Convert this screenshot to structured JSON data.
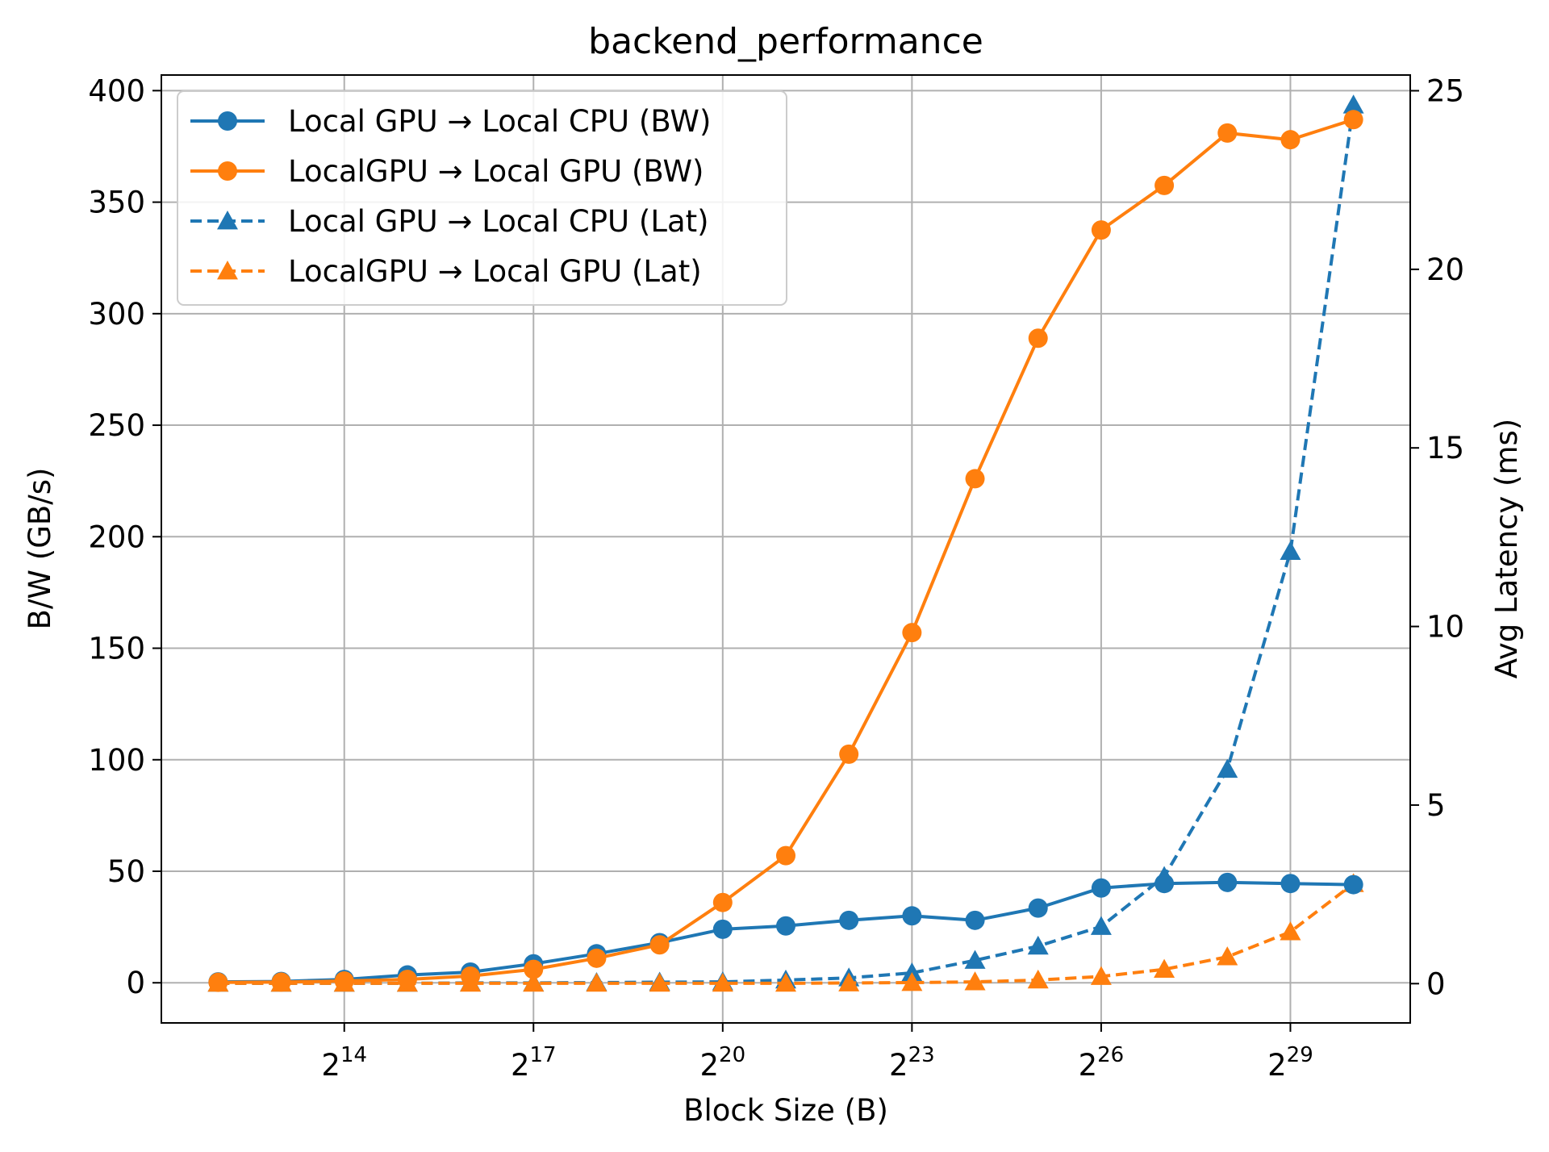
{
  "chart_data": {
    "type": "line",
    "title": "backend_performance",
    "xlabel": "Block Size (B)",
    "ylabel": "B/W (GB/s)",
    "ylabel_right": "Avg Latency (ms)",
    "x_scale": "log2",
    "x": [
      4096,
      8192,
      16384,
      32768,
      65536,
      131072,
      262144,
      524288,
      1048576,
      2097152,
      4194304,
      8388608,
      16777216,
      33554432,
      67108864,
      134217728,
      268435456,
      536870912,
      1073741824
    ],
    "x_ticks": [
      {
        "base": "2",
        "exp": "14"
      },
      {
        "base": "2",
        "exp": "17"
      },
      {
        "base": "2",
        "exp": "20"
      },
      {
        "base": "2",
        "exp": "23"
      },
      {
        "base": "2",
        "exp": "26"
      },
      {
        "base": "2",
        "exp": "29"
      }
    ],
    "x_tick_values": [
      16384,
      131072,
      1048576,
      8388608,
      67108864,
      536870912
    ],
    "ylim": [
      -18,
      407
    ],
    "ylim_right": [
      -1.1,
      25.44
    ],
    "y_ticks": [
      "0",
      "50",
      "100",
      "150",
      "200",
      "250",
      "300",
      "350",
      "400"
    ],
    "y_ticks_right": [
      "0",
      "5",
      "10",
      "15",
      "20",
      "25"
    ],
    "grid": true,
    "legend_position": "upper left",
    "series": [
      {
        "name": "Local GPU → Local CPU (BW)",
        "axis": "left",
        "color": "#1f77b4",
        "line": "solid",
        "marker": "circle",
        "values": [
          0.4,
          0.6,
          1.5,
          3.5,
          4.8,
          8.5,
          13,
          18,
          24,
          25.5,
          28,
          30,
          28,
          33.5,
          42.5,
          44.5,
          45,
          44.5,
          44
        ]
      },
      {
        "name": "LocalGPU → Local GPU (BW)",
        "axis": "left",
        "color": "#ff7f0e",
        "line": "solid",
        "marker": "circle",
        "values": [
          0.2,
          0.3,
          0.8,
          1.5,
          3,
          6,
          11,
          17,
          36,
          57,
          102.5,
          157,
          226,
          289,
          337.5,
          357.5,
          381,
          378,
          387
        ]
      },
      {
        "name": "Local GPU → Local CPU (Lat)",
        "axis": "right",
        "color": "#1f77b4",
        "line": "dashed",
        "marker": "triangle",
        "values": [
          0.01,
          0.01,
          0.01,
          0.01,
          0.02,
          0.02,
          0.03,
          0.04,
          0.05,
          0.1,
          0.16,
          0.3,
          0.65,
          1.05,
          1.6,
          3.0,
          6.0,
          12.1,
          24.6
        ]
      },
      {
        "name": "LocalGPU → Local GPU (Lat)",
        "axis": "right",
        "color": "#ff7f0e",
        "line": "dashed",
        "marker": "triangle",
        "values": [
          0.01,
          0.01,
          0.01,
          0.01,
          0.01,
          0.01,
          0.01,
          0.01,
          0.01,
          0.01,
          0.02,
          0.03,
          0.05,
          0.1,
          0.2,
          0.4,
          0.75,
          1.45,
          2.8
        ]
      }
    ]
  }
}
